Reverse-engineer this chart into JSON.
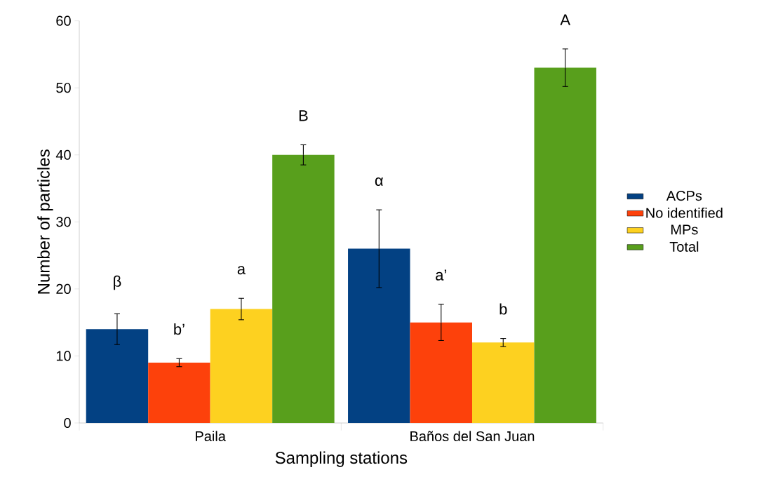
{
  "chart_data": {
    "type": "bar",
    "xlabel": "Sampling stations",
    "ylabel": "Number of particles",
    "categories": [
      "Paila",
      "Baños del San Juan"
    ],
    "series": [
      {
        "name": "ACPs",
        "color": "#034183",
        "values": [
          14,
          26
        ],
        "errors": [
          2.3,
          5.8
        ]
      },
      {
        "name": "No identified",
        "color": "#fd410b",
        "values": [
          9,
          15
        ],
        "errors": [
          0.6,
          2.7
        ]
      },
      {
        "name": "MPs",
        "color": "#fdd120",
        "values": [
          17,
          12
        ],
        "errors": [
          1.6,
          0.6
        ]
      },
      {
        "name": "Total",
        "color": "#589f1c",
        "values": [
          40,
          53
        ],
        "errors": [
          1.5,
          2.8
        ]
      }
    ],
    "ylim": [
      0,
      60
    ],
    "yticks": [
      0,
      10,
      20,
      30,
      40,
      50,
      60
    ],
    "grid": false,
    "legend": "right",
    "annotations": [
      "β",
      "b’",
      "a",
      "B",
      "α",
      "a’",
      "b",
      "A"
    ]
  }
}
